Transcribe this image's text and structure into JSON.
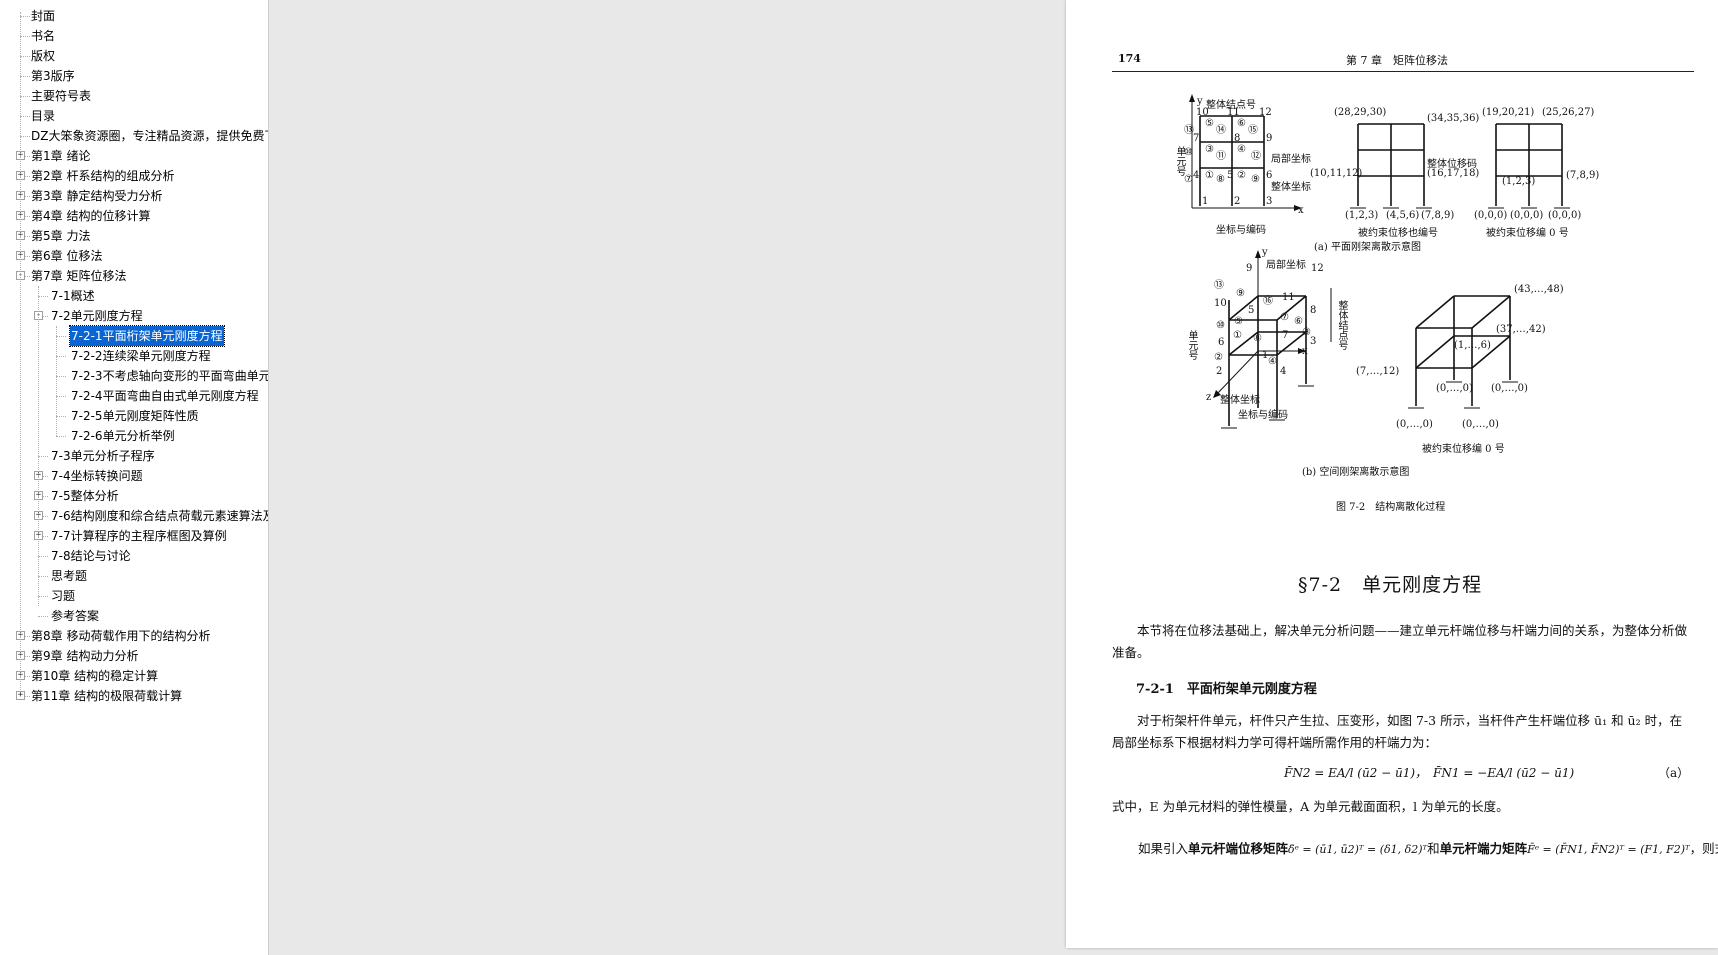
{
  "toc": [
    {
      "level": 0,
      "label": "封面",
      "toggle": ""
    },
    {
      "level": 0,
      "label": "书名",
      "toggle": ""
    },
    {
      "level": 0,
      "label": "版权",
      "toggle": ""
    },
    {
      "level": 0,
      "label": "第3版序",
      "toggle": ""
    },
    {
      "level": 0,
      "label": "主要符号表",
      "toggle": ""
    },
    {
      "level": 0,
      "label": "目录",
      "toggle": ""
    },
    {
      "level": 0,
      "label": "DZ大笨象资源圈，专注精品资源，提供免费下",
      "toggle": ""
    },
    {
      "level": 0,
      "label": "第1章 绪论",
      "toggle": "+"
    },
    {
      "level": 0,
      "label": "第2章 杆系结构的组成分析",
      "toggle": "+"
    },
    {
      "level": 0,
      "label": "第3章 静定结构受力分析",
      "toggle": "+"
    },
    {
      "level": 0,
      "label": "第4章 结构的位移计算",
      "toggle": "+"
    },
    {
      "level": 0,
      "label": "第5章 力法",
      "toggle": "+"
    },
    {
      "level": 0,
      "label": "第6章 位移法",
      "toggle": "+"
    },
    {
      "level": 0,
      "label": "第7章 矩阵位移法",
      "toggle": "-"
    },
    {
      "level": 1,
      "label": "7-1概述",
      "toggle": ""
    },
    {
      "level": 1,
      "label": "7-2单元刚度方程",
      "toggle": "-"
    },
    {
      "level": 2,
      "label": "7-2-1平面桁架单元刚度方程",
      "toggle": "",
      "selected": true
    },
    {
      "level": 2,
      "label": "7-2-2连续梁单元刚度方程",
      "toggle": ""
    },
    {
      "level": 2,
      "label": "7-2-3不考虑轴向变形的平面弯曲单元",
      "toggle": ""
    },
    {
      "level": 2,
      "label": "7-2-4平面弯曲自由式单元刚度方程",
      "toggle": ""
    },
    {
      "level": 2,
      "label": "7-2-5单元刚度矩阵性质",
      "toggle": ""
    },
    {
      "level": 2,
      "label": "7-2-6单元分析举例",
      "toggle": ""
    },
    {
      "level": 1,
      "label": "7-3单元分析子程序",
      "toggle": ""
    },
    {
      "level": 1,
      "label": "7-4坐标转换问题",
      "toggle": "+"
    },
    {
      "level": 1,
      "label": "7-5整体分析",
      "toggle": "+"
    },
    {
      "level": 1,
      "label": "7-6结构刚度和综合结点荷载元素速算法及",
      "toggle": "+"
    },
    {
      "level": 1,
      "label": "7-7计算程序的主程序框图及算例",
      "toggle": "+"
    },
    {
      "level": 1,
      "label": "7-8结论与讨论",
      "toggle": ""
    },
    {
      "level": 1,
      "label": "思考题",
      "toggle": ""
    },
    {
      "level": 1,
      "label": "习题",
      "toggle": ""
    },
    {
      "level": 1,
      "label": "参考答案",
      "toggle": ""
    },
    {
      "level": 0,
      "label": "第8章 移动荷载作用下的结构分析",
      "toggle": "+"
    },
    {
      "level": 0,
      "label": "第9章 结构动力分析",
      "toggle": "+"
    },
    {
      "level": 0,
      "label": "第10章 结构的稳定计算",
      "toggle": "+"
    },
    {
      "level": 0,
      "label": "第11章 结构的极限荷载计算",
      "toggle": "+"
    }
  ],
  "page": {
    "number": "174",
    "header": "第 7 章　矩阵位移法",
    "fig_a": {
      "t_node_label": "整体结点号",
      "t_local": "局部坐标",
      "t_global": "整体坐标",
      "t_elem": "单元号",
      "t_y": "y",
      "t_x": "x",
      "t_coding": "坐标与编码",
      "t_disp_code": "整体位移码",
      "t_c1": "(28,29,30)",
      "t_c2": "(34,35,36)",
      "t_c3": "(10,11,12)",
      "t_c4": "(16,17,18)",
      "t_c5": "(1,2,3)",
      "t_c6": "(4,5,6)",
      "t_c7": "(7,8,9)",
      "t_constrained1": "被约束位移也编号",
      "t_d1": "(19,20,21)",
      "t_d2": "(25,26,27)",
      "t_d3": "(1,2,3)",
      "t_d4": "(7,8,9)",
      "t_d5": "(0,0,0)",
      "t_d6": "(0,0,0)",
      "t_d7": "(0,0,0)",
      "t_constrained2": "被约束位移编 0 号",
      "caption": "(a) 平面刚架离散示意图",
      "n10": "10",
      "n11": "11",
      "n12": "12",
      "n7": "7",
      "n8": "8",
      "n9": "9",
      "n4": "4",
      "n5": "5",
      "n6": "6",
      "n1": "1",
      "n2": "2",
      "n3": "3",
      "e13": "⑬",
      "e14": "⑭",
      "e15": "⑮",
      "e5": "⑤",
      "e6": "⑥",
      "e10": "⑩",
      "e3": "③",
      "e11": "⑪",
      "e4": "④",
      "e12": "⑫",
      "e7": "⑦",
      "e1": "①",
      "e2": "②",
      "e8": "⑧",
      "e9": "⑨"
    },
    "fig_b": {
      "t_local": "局部坐标",
      "t_node_label": "整体结点号",
      "t_elem": "单元号",
      "t_global": "整体坐标",
      "t_coding": "坐标与编码",
      "t_y": "y",
      "t_x": "x",
      "t_z": "z",
      "t_c1": "(43,…,48)",
      "t_c2": "(37,…,42)",
      "t_c3": "(1,…,6)",
      "t_c4": "(7,…,12)",
      "t_c5": "(0,…,0)",
      "t_c6": "(0,…,0)",
      "t_c7": "(0,…,0)",
      "t_c8": "(0,…,0)",
      "t_constrained": "被约束位移编 0 号",
      "caption": "(b) 空间刚架离散示意图",
      "n9": "9",
      "n12": "12",
      "n10": "10",
      "n11": "11",
      "n5": "5",
      "n8": "8",
      "n6": "6",
      "n7": "7",
      "n2": "2",
      "n1": "1",
      "n3": "3",
      "n4": "4",
      "e13": "⑬",
      "e9": "⑨",
      "e16": "⑯",
      "e5": "⑤",
      "e7": "⑦",
      "e6": "⑥",
      "e10": "⑩",
      "e1": "①",
      "e8": "⑧",
      "e3": "③",
      "e2": "②",
      "e4": "④"
    },
    "fig_caption": "图 7-2　结构离散化过程",
    "section_title": "§7-2　单元刚度方程",
    "para1": "本节将在位移法基础上，解决单元分析问题——建立单元杆端位移与杆端力间的关系，为整体分析做准备。",
    "sub_title": "7-2-1　平面桁架单元刚度方程",
    "para2": "对于桁架杆件单元，杆件只产生拉、压变形，如图 7-3 所示，当杆件产生杆端位移 ū₁ 和 ū₂ 时，在局部坐标系下根据材料力学可得杆端所需作用的杆端力为：",
    "eq_a": "F̄N2 = EA/l (ū2 − ū1)，　F̄N1 = −EA/l (ū2 − ū1)",
    "eq_a_label": "（a）",
    "para3": "式中，E 为单元材料的弹性模量，A 为单元截面面积，l 为单元的长度。",
    "para4_pre": "如果引入",
    "para4_b1": "单元杆端位移矩阵",
    "para4_m1": "δ̄ᵉ = (ū1, ū2)ᵀ = (δ1, δ2)ᵀ",
    "para4_and": "和",
    "para4_b2": "单元杆端力矩阵",
    "para4_m2": "F̄ᵉ = (F̄N1, F̄N2)ᵀ = (F1, F2)ᵀ",
    "para4_post": "，则式（a）"
  }
}
